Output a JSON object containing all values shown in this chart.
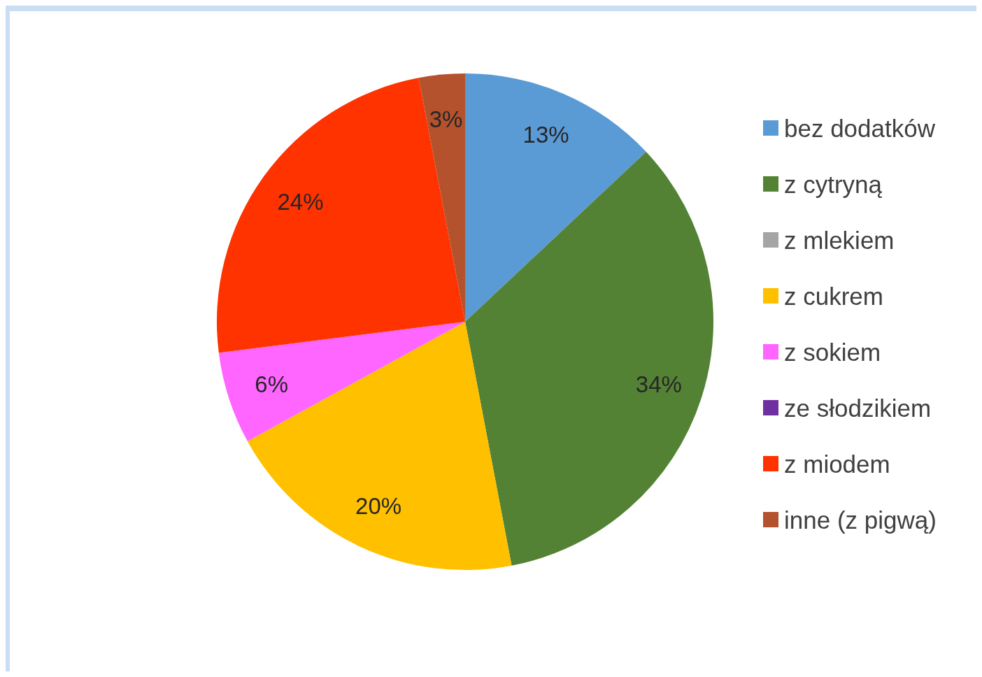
{
  "chart_data": {
    "type": "pie",
    "categories": [
      "bez dodatków",
      "z cytryną",
      "z mlekiem",
      "z cukrem",
      "z sokiem",
      "ze słodzikiem",
      "z miodem",
      "inne (z pigwą)"
    ],
    "values": [
      13,
      34,
      0,
      20,
      6,
      0,
      24,
      3
    ],
    "value_labels": [
      "13%",
      "34%",
      null,
      "20%",
      "6%",
      null,
      "24%",
      "3%"
    ],
    "colors": [
      "#5b9bd5",
      "#548235",
      "#a5a5a5",
      "#ffc000",
      "#ff66ff",
      "#7030a0",
      "#ff3300",
      "#b5522e"
    ],
    "legend": "right"
  }
}
